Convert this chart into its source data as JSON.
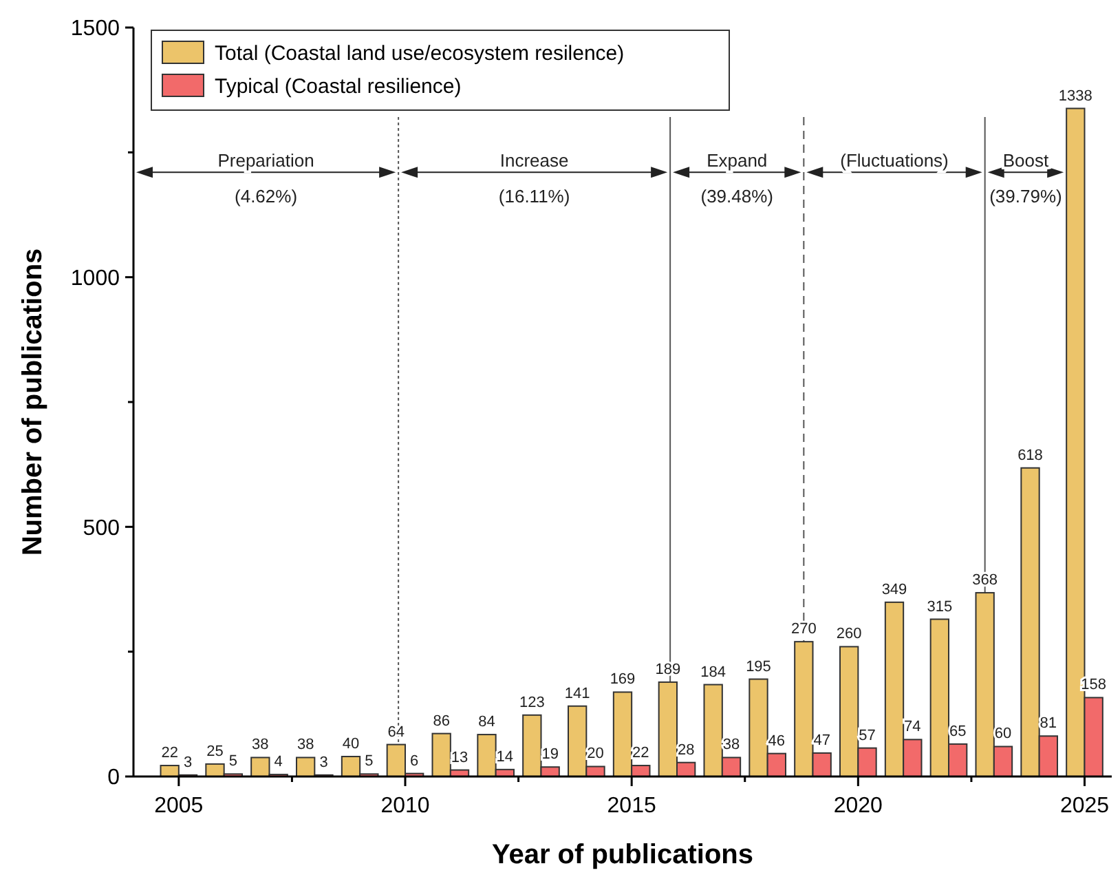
{
  "chart_data": {
    "type": "bar",
    "xlabel": "Year of publications",
    "ylabel": "Number of publications",
    "x": [
      2005,
      2006,
      2007,
      2008,
      2009,
      2010,
      2011,
      2012,
      2013,
      2014,
      2015,
      2016,
      2017,
      2018,
      2019,
      2020,
      2021,
      2022,
      2023,
      2024,
      2025
    ],
    "series": [
      {
        "name": "Total (Coastal land use/ecosystem resilence)",
        "color": "#ecc46a",
        "values": [
          22,
          25,
          38,
          38,
          40,
          64,
          86,
          84,
          123,
          141,
          169,
          189,
          184,
          195,
          270,
          260,
          349,
          315,
          368,
          618,
          1338
        ]
      },
      {
        "name": "Typical (Coastal resilience)",
        "color": "#f26a6a",
        "values": [
          3,
          5,
          4,
          3,
          5,
          6,
          13,
          14,
          19,
          20,
          22,
          28,
          38,
          46,
          47,
          57,
          74,
          65,
          60,
          81,
          158
        ]
      }
    ],
    "xlim": [
      2004,
      2025.6
    ],
    "xticks": [
      2005,
      {
        "value": 2007.5,
        "label": null
      },
      2010,
      {
        "value": 2012.5,
        "label": null
      },
      2015,
      {
        "value": 2017.5,
        "label": null
      },
      2020,
      {
        "value": 2022.5,
        "label": null
      },
      2025
    ],
    "ylim": [
      0,
      1500
    ],
    "yticks": [
      0,
      {
        "value": 250,
        "label": null
      },
      500,
      {
        "value": 750,
        "label": null
      },
      1000,
      {
        "value": 1250,
        "label": null
      },
      1500
    ],
    "ref_lines": [
      {
        "axis": "x",
        "value": 2009.85,
        "line_style": "dotted"
      },
      {
        "axis": "x",
        "value": 2015.85,
        "line_style": "solid"
      },
      {
        "axis": "x",
        "value": 2018.8,
        "line_style": "dashed"
      },
      {
        "axis": "x",
        "value": 2022.8,
        "line_style": "solid"
      }
    ],
    "annotations": [
      "Prepariation\n(4.62%)",
      "Increase\n(16.11%)",
      "Expand\n(39.48%)",
      "(Fluctuations)",
      "Boost\n(39.79%)"
    ],
    "data_labels": true,
    "legend": "top left",
    "grid": false
  }
}
